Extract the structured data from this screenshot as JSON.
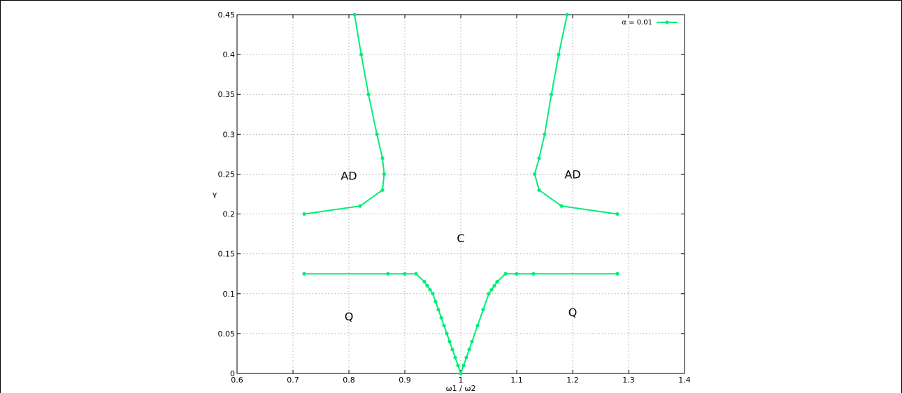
{
  "chart_data": {
    "type": "line",
    "xlabel": "ω1 / ω2",
    "ylabel": "γ",
    "xlim": [
      0.6,
      1.4
    ],
    "ylim": [
      0,
      0.45
    ],
    "xticks": [
      "0.6",
      "0.7",
      "0.8",
      "0.9",
      "1",
      "1.1",
      "1.2",
      "1.3",
      "1.4"
    ],
    "yticks": [
      "0",
      "0.05",
      "0.1",
      "0.15",
      "0.2",
      "0.25",
      "0.3",
      "0.35",
      "0.4",
      "0.45"
    ],
    "grid": true,
    "legend_position": "top-right",
    "series_color": "#00ee77",
    "series": [
      {
        "name": "α = 0.01",
        "segments": [
          [
            [
              0.72,
              0.2
            ],
            [
              0.82,
              0.21
            ],
            [
              0.86,
              0.23
            ],
            [
              0.863,
              0.25
            ],
            [
              0.86,
              0.27
            ],
            [
              0.85,
              0.3
            ],
            [
              0.835,
              0.35
            ],
            [
              0.822,
              0.4
            ],
            [
              0.81,
              0.45
            ]
          ],
          [
            [
              1.28,
              0.2
            ],
            [
              1.18,
              0.21
            ],
            [
              1.14,
              0.23
            ],
            [
              1.132,
              0.25
            ],
            [
              1.14,
              0.27
            ],
            [
              1.15,
              0.3
            ],
            [
              1.162,
              0.35
            ],
            [
              1.175,
              0.4
            ],
            [
              1.19,
              0.45
            ]
          ],
          [
            [
              0.72,
              0.125
            ],
            [
              0.87,
              0.125
            ],
            [
              0.9,
              0.125
            ],
            [
              0.92,
              0.125
            ],
            [
              0.935,
              0.115
            ],
            [
              0.94,
              0.11
            ],
            [
              0.945,
              0.105
            ],
            [
              0.95,
              0.1
            ],
            [
              0.955,
              0.09
            ],
            [
              0.96,
              0.08
            ],
            [
              0.965,
              0.07
            ],
            [
              0.97,
              0.06
            ],
            [
              0.975,
              0.05
            ],
            [
              0.98,
              0.04
            ],
            [
              0.985,
              0.03
            ],
            [
              0.99,
              0.02
            ],
            [
              0.995,
              0.01
            ],
            [
              1.0,
              0.0
            ],
            [
              1.005,
              0.01
            ],
            [
              1.01,
              0.02
            ],
            [
              1.015,
              0.03
            ],
            [
              1.02,
              0.04
            ],
            [
              1.03,
              0.06
            ],
            [
              1.04,
              0.08
            ],
            [
              1.05,
              0.1
            ],
            [
              1.055,
              0.105
            ],
            [
              1.06,
              0.11
            ],
            [
              1.065,
              0.115
            ],
            [
              1.08,
              0.125
            ],
            [
              1.1,
              0.125
            ],
            [
              1.13,
              0.125
            ],
            [
              1.28,
              0.125
            ]
          ]
        ]
      }
    ],
    "annotations": [
      {
        "text": "AD",
        "x": 0.8,
        "y": 0.248
      },
      {
        "text": "AD",
        "x": 1.2,
        "y": 0.25
      },
      {
        "text": "C",
        "x": 1.0,
        "y": 0.17
      },
      {
        "text": "Q",
        "x": 0.8,
        "y": 0.072
      },
      {
        "text": "Q",
        "x": 1.2,
        "y": 0.077
      }
    ]
  }
}
